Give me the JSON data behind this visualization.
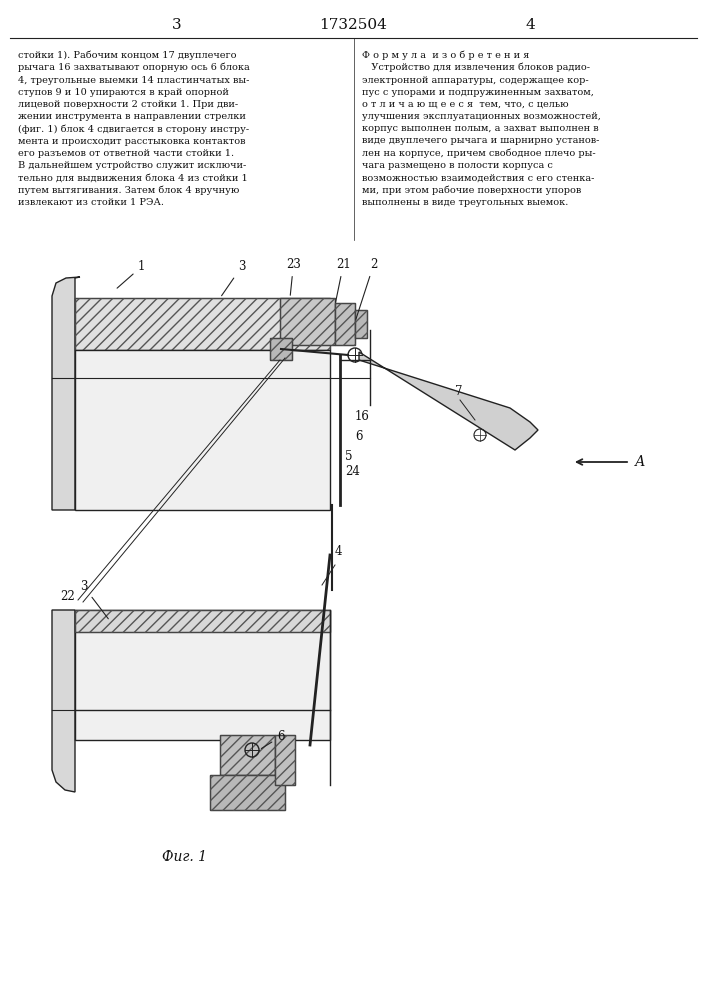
{
  "page_numbers": [
    "3",
    "1732504",
    "4"
  ],
  "left_text": "стойки 1). Рабочим концом 17 двуплечего\nрычага 16 захватывают опорную ось 6 блока\n4, треугольные выемки 14 пластинчатых вы-\nступов 9 и 10 упираются в край опорной\nлицевой поверхности 2 стойки 1. При дви-\nжении инструмента в направлении стрелки\n(фиг. 1) блок 4 сдвигается в сторону инстру-\nмента и происходит расстыковка контактов\nего разъемов от ответной части стойки 1.\nВ дальнейшем устройство служит исключи-\nтельно для выдвижения блока 4 из стойки 1\nпутем вытягивания. Затем блок 4 вручную\nизвлекают из стойки 1 РЭА.",
  "right_text": "Ф о р м у л а  и з о б р е т е н и я\n   Устройство для извлечения блоков радио-\nэлектронной аппаратуры, содержащее кор-\nпус с упорами и подпружиненным захватом,\nо т л и ч а ю щ е е с я  тем, что, с целью\nулучшения эксплуатационных возможностей,\nкорпус выполнен полым, а захват выполнен в\nвиде двуплечего рычага и шарнирно установ-\nлен на корпусе, причем свободное плечо ры-\nчага размещено в полости корпуса с\nвозможностью взаимодействия с его стенка-\nми, при этом рабочие поверхности упоров\nвыполнены в виде треугольных выемок.",
  "fig_label": "Фиг. 1",
  "bg_color": "#ffffff",
  "line_color": "#222222",
  "text_color": "#111111"
}
